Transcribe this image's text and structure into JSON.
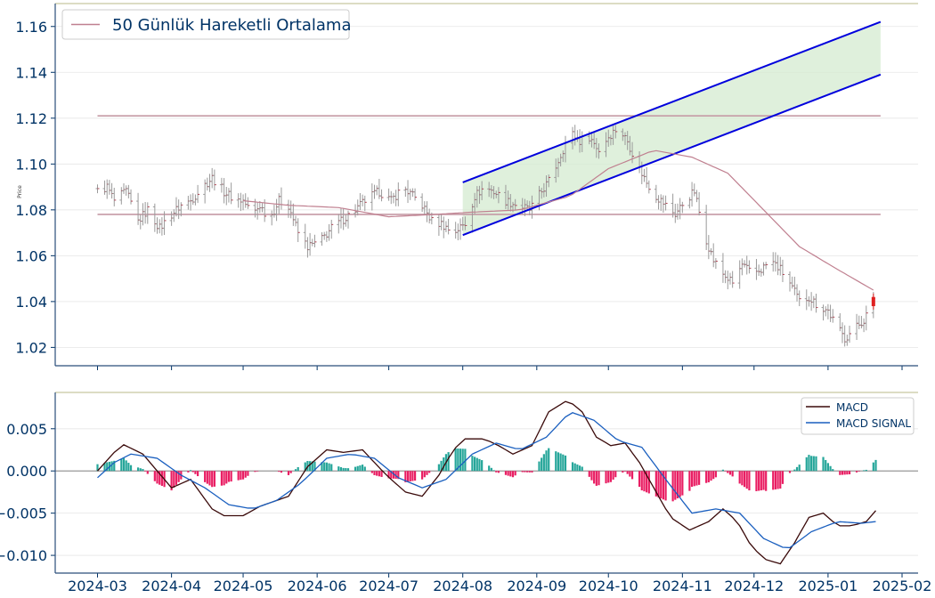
{
  "chart_data": [
    {
      "type": "line",
      "panel": "price",
      "ylabel": "Price",
      "ylim": [
        1.012,
        1.17
      ],
      "yticks": [
        1.02,
        1.04,
        1.06,
        1.08,
        1.1,
        1.12,
        1.14,
        1.16
      ],
      "ytick_labels": [
        "1.02",
        "1.04",
        "1.06",
        "1.08",
        "1.10",
        "1.12",
        "1.14",
        "1.16"
      ],
      "legend": {
        "placement": "top-left",
        "entries": [
          {
            "label": "50 Günlük Hareketli Ortalama",
            "color": "#c08090"
          }
        ]
      },
      "grid": "horizontal",
      "ohlc_anchors": [
        [
          "2024-03-01",
          1.088
        ],
        [
          "2024-03-05",
          1.09
        ],
        [
          "2024-03-08",
          1.084
        ],
        [
          "2024-03-13",
          1.088
        ],
        [
          "2024-03-18",
          1.075
        ],
        [
          "2024-03-22",
          1.08
        ],
        [
          "2024-03-27",
          1.072
        ],
        [
          "2024-04-01",
          1.078
        ],
        [
          "2024-04-05",
          1.082
        ],
        [
          "2024-04-09",
          1.084
        ],
        [
          "2024-04-14",
          1.09
        ],
        [
          "2024-04-18",
          1.094
        ],
        [
          "2024-04-23",
          1.088
        ],
        [
          "2024-04-27",
          1.085
        ],
        [
          "2024-05-01",
          1.084
        ],
        [
          "2024-05-05",
          1.078
        ],
        [
          "2024-05-08",
          1.082
        ],
        [
          "2024-05-12",
          1.076
        ],
        [
          "2024-05-16",
          1.084
        ],
        [
          "2024-05-20",
          1.082
        ],
        [
          "2024-05-24",
          1.07
        ],
        [
          "2024-05-28",
          1.064
        ],
        [
          "2024-06-02",
          1.066
        ],
        [
          "2024-06-07",
          1.072
        ],
        [
          "2024-06-12",
          1.076
        ],
        [
          "2024-06-17",
          1.08
        ],
        [
          "2024-06-22",
          1.085
        ],
        [
          "2024-06-27",
          1.088
        ],
        [
          "2024-07-02",
          1.084
        ],
        [
          "2024-07-07",
          1.09
        ],
        [
          "2024-07-11",
          1.086
        ],
        [
          "2024-07-15",
          1.082
        ],
        [
          "2024-07-19",
          1.075
        ],
        [
          "2024-07-23",
          1.074
        ],
        [
          "2024-07-28",
          1.07
        ],
        [
          "2024-08-02",
          1.074
        ],
        [
          "2024-08-06",
          1.086
        ],
        [
          "2024-08-10",
          1.09
        ],
        [
          "2024-08-14",
          1.088
        ],
        [
          "2024-08-19",
          1.084
        ],
        [
          "2024-08-24",
          1.082
        ],
        [
          "2024-08-29",
          1.08
        ],
        [
          "2024-09-03",
          1.088
        ],
        [
          "2024-09-07",
          1.094
        ],
        [
          "2024-09-11",
          1.104
        ],
        [
          "2024-09-15",
          1.114
        ],
        [
          "2024-09-19",
          1.11
        ],
        [
          "2024-09-23",
          1.112
        ],
        [
          "2024-09-27",
          1.106
        ],
        [
          "2024-10-01",
          1.112
        ],
        [
          "2024-10-05",
          1.116
        ],
        [
          "2024-10-09",
          1.11
        ],
        [
          "2024-10-13",
          1.1
        ],
        [
          "2024-10-17",
          1.092
        ],
        [
          "2024-10-21",
          1.086
        ],
        [
          "2024-10-25",
          1.082
        ],
        [
          "2024-10-29",
          1.078
        ],
        [
          "2024-11-02",
          1.084
        ],
        [
          "2024-11-06",
          1.088
        ],
        [
          "2024-11-10",
          1.07
        ],
        [
          "2024-11-14",
          1.058
        ],
        [
          "2024-11-18",
          1.052
        ],
        [
          "2024-11-22",
          1.048
        ],
        [
          "2024-11-26",
          1.056
        ],
        [
          "2024-11-30",
          1.052
        ],
        [
          "2024-12-04",
          1.054
        ],
        [
          "2024-12-08",
          1.058
        ],
        [
          "2024-12-12",
          1.054
        ],
        [
          "2024-12-16",
          1.048
        ],
        [
          "2024-12-20",
          1.04
        ],
        [
          "2024-12-24",
          1.042
        ],
        [
          "2024-12-28",
          1.038
        ],
        [
          "2025-01-01",
          1.036
        ],
        [
          "2025-01-04",
          1.03
        ],
        [
          "2025-01-08",
          1.024
        ],
        [
          "2025-01-12",
          1.028
        ],
        [
          "2025-01-16",
          1.032
        ],
        [
          "2025-01-20",
          1.04
        ]
      ],
      "ma50_anchors": [
        [
          "2024-05-01",
          1.084
        ],
        [
          "2024-05-20",
          1.082
        ],
        [
          "2024-06-10",
          1.081
        ],
        [
          "2024-07-01",
          1.077
        ],
        [
          "2024-07-20",
          1.078
        ],
        [
          "2024-08-05",
          1.079
        ],
        [
          "2024-08-25",
          1.08
        ],
        [
          "2024-09-15",
          1.086
        ],
        [
          "2024-10-01",
          1.098
        ],
        [
          "2024-10-20",
          1.106
        ],
        [
          "2024-11-05",
          1.103
        ],
        [
          "2024-11-20",
          1.096
        ],
        [
          "2024-12-05",
          1.08
        ],
        [
          "2024-12-20",
          1.064
        ],
        [
          "2025-01-05",
          1.054
        ],
        [
          "2025-01-20",
          1.045
        ]
      ],
      "resistance_line": {
        "value": 1.121,
        "x_start": "2024-03-01",
        "x_end": "2025-01-23"
      },
      "support_line": {
        "value": 1.078,
        "x_start": "2024-03-01",
        "x_end": "2025-01-23"
      },
      "channel": {
        "upper": [
          [
            "2024-08-01",
            1.092
          ],
          [
            "2025-01-23",
            1.162
          ]
        ],
        "lower": [
          [
            "2024-08-01",
            1.069
          ],
          [
            "2025-01-23",
            1.139
          ]
        ],
        "line_color": "#0000dd",
        "fill_color": "#d4ebd0"
      },
      "last_candle": {
        "date": "2025-01-20",
        "open": 1.042,
        "close": 1.038,
        "color": "#e02020"
      }
    },
    {
      "type": "line",
      "panel": "macd",
      "ylim": [
        -0.0121,
        0.0093
      ],
      "yticks": [
        -0.01,
        -0.005,
        0.0,
        0.005
      ],
      "ytick_labels": [
        "−0.010",
        "−0.005",
        "0.000",
        "0.005"
      ],
      "xtick_labels": [
        "2024-03",
        "2024-04",
        "2024-05",
        "2024-06",
        "2024-07",
        "2024-08",
        "2024-09",
        "2024-10",
        "2024-11",
        "2024-12",
        "2025-01",
        "2025-02"
      ],
      "xtick_dates": [
        "2024-03-01",
        "2024-04-01",
        "2024-05-01",
        "2024-06-01",
        "2024-07-01",
        "2024-08-01",
        "2024-09-01",
        "2024-10-01",
        "2024-11-01",
        "2024-12-01",
        "2025-01-01",
        "2025-02-01"
      ],
      "grid": "horizontal",
      "legend": {
        "placement": "top-right",
        "entries": [
          {
            "label": "MACD",
            "color": "#3a0a0a"
          },
          {
            "label": "MACD SIGNAL",
            "color": "#1a5fbf"
          }
        ]
      },
      "series": [
        {
          "name": "MACD",
          "color": "#3a0a0a",
          "anchors": [
            [
              "2024-03-01",
              0.0
            ],
            [
              "2024-03-08",
              0.0022
            ],
            [
              "2024-03-12",
              0.0031
            ],
            [
              "2024-03-20",
              0.002
            ],
            [
              "2024-04-01",
              -0.002
            ],
            [
              "2024-04-09",
              -0.001
            ],
            [
              "2024-04-18",
              -0.0045
            ],
            [
              "2024-04-23",
              -0.0053
            ],
            [
              "2024-05-01",
              -0.0053
            ],
            [
              "2024-05-08",
              -0.0042
            ],
            [
              "2024-05-20",
              -0.003
            ],
            [
              "2024-05-28",
              0.0005
            ],
            [
              "2024-06-05",
              0.0025
            ],
            [
              "2024-06-12",
              0.0022
            ],
            [
              "2024-06-20",
              0.0025
            ],
            [
              "2024-06-30",
              -0.0005
            ],
            [
              "2024-07-08",
              -0.0025
            ],
            [
              "2024-07-15",
              -0.003
            ],
            [
              "2024-07-22",
              -0.0005
            ],
            [
              "2024-07-28",
              0.0025
            ],
            [
              "2024-08-02",
              0.0038
            ],
            [
              "2024-08-10",
              0.0038
            ],
            [
              "2024-08-16",
              0.003
            ],
            [
              "2024-08-22",
              0.002
            ],
            [
              "2024-08-30",
              0.003
            ],
            [
              "2024-09-06",
              0.007
            ],
            [
              "2024-09-14",
              0.0084
            ],
            [
              "2024-09-20",
              0.007
            ],
            [
              "2024-09-26",
              0.004
            ],
            [
              "2024-10-02",
              0.003
            ],
            [
              "2024-10-08",
              0.0033
            ],
            [
              "2024-10-14",
              0.001
            ],
            [
              "2024-10-20",
              -0.002
            ],
            [
              "2024-10-27",
              -0.0055
            ],
            [
              "2024-11-04",
              -0.007
            ],
            [
              "2024-11-12",
              -0.006
            ],
            [
              "2024-11-18",
              -0.0045
            ],
            [
              "2024-11-24",
              -0.006
            ],
            [
              "2024-11-30",
              -0.009
            ],
            [
              "2024-12-06",
              -0.0105
            ],
            [
              "2024-12-12",
              -0.011
            ],
            [
              "2024-12-18",
              -0.0085
            ],
            [
              "2024-12-24",
              -0.0055
            ],
            [
              "2024-12-30",
              -0.005
            ],
            [
              "2025-01-05",
              -0.0065
            ],
            [
              "2025-01-11",
              -0.0065
            ],
            [
              "2025-01-17",
              -0.006
            ],
            [
              "2025-01-21",
              -0.0047
            ]
          ]
        },
        {
          "name": "MACD SIGNAL",
          "color": "#1a5fbf",
          "anchors": [
            [
              "2024-03-01",
              -0.0008
            ],
            [
              "2024-03-08",
              0.001
            ],
            [
              "2024-03-15",
              0.002
            ],
            [
              "2024-03-26",
              0.0015
            ],
            [
              "2024-04-05",
              -0.0005
            ],
            [
              "2024-04-15",
              -0.002
            ],
            [
              "2024-04-25",
              -0.004
            ],
            [
              "2024-05-05",
              -0.0045
            ],
            [
              "2024-05-15",
              -0.0035
            ],
            [
              "2024-05-25",
              -0.0015
            ],
            [
              "2024-06-05",
              0.0015
            ],
            [
              "2024-06-15",
              0.002
            ],
            [
              "2024-06-25",
              0.0015
            ],
            [
              "2024-07-05",
              -0.0008
            ],
            [
              "2024-07-15",
              -0.002
            ],
            [
              "2024-07-25",
              -0.001
            ],
            [
              "2024-08-05",
              0.002
            ],
            [
              "2024-08-15",
              0.0033
            ],
            [
              "2024-08-25",
              0.0025
            ],
            [
              "2024-09-05",
              0.004
            ],
            [
              "2024-09-15",
              0.007
            ],
            [
              "2024-09-25",
              0.006
            ],
            [
              "2024-10-05",
              0.0036
            ],
            [
              "2024-10-15",
              0.0028
            ],
            [
              "2024-10-25",
              -0.001
            ],
            [
              "2024-11-05",
              -0.005
            ],
            [
              "2024-11-15",
              -0.0045
            ],
            [
              "2024-11-25",
              -0.005
            ],
            [
              "2024-12-05",
              -0.008
            ],
            [
              "2024-12-15",
              -0.0093
            ],
            [
              "2024-12-25",
              -0.0072
            ],
            [
              "2025-01-05",
              -0.006
            ],
            [
              "2025-01-15",
              -0.0062
            ],
            [
              "2025-01-21",
              -0.006
            ]
          ]
        }
      ],
      "histogram": {
        "positive_color": "#26a69a",
        "negative_color": "#e91e63"
      }
    }
  ]
}
